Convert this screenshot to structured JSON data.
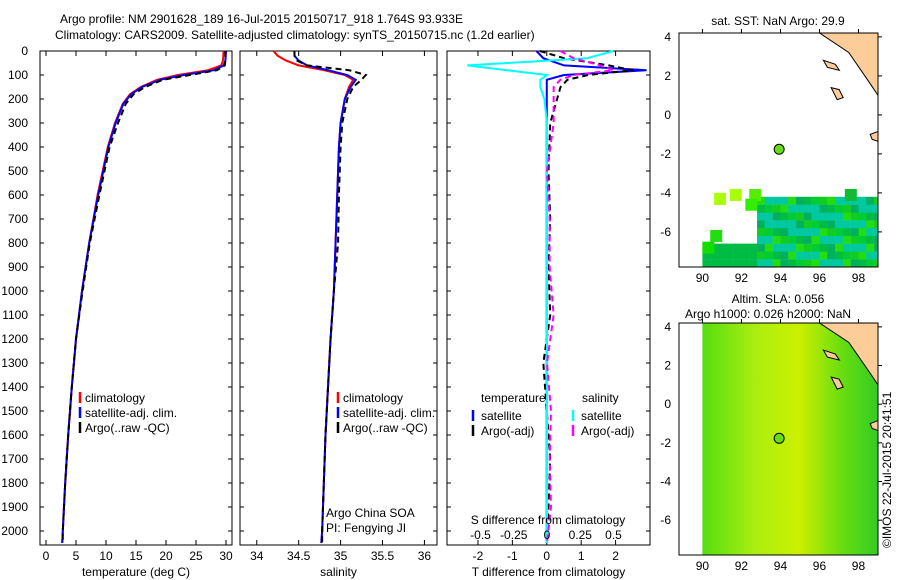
{
  "title_line1": "Argo profile: NM 2901628_189 16-Jul-2015 20150717_918 1.764S 93.933E",
  "title_line2": "Climatology: CARS2009. Satellite-adjusted climatology: synTS_20150715.nc (1.2d earlier)",
  "credit": "©IMOS 22-Jul-2015 20:41:51",
  "colors": {
    "climatology": "#ff0000",
    "satellite": "#0000ff",
    "argo": "#000000",
    "sal_sat": "#00ffff",
    "sal_argo": "#ff00ff",
    "land": "#fccc99"
  },
  "chart_data": [
    {
      "type": "line",
      "xlabel": "temperature (deg C)",
      "ylabel": "depth",
      "xlim": [
        -1,
        31
      ],
      "ylim": [
        2050,
        0
      ],
      "xticks": [
        0,
        5,
        10,
        15,
        20,
        25,
        30
      ],
      "yticks": [
        0,
        100,
        200,
        300,
        400,
        500,
        600,
        700,
        800,
        900,
        1000,
        1100,
        1200,
        1300,
        1400,
        1500,
        1600,
        1700,
        1800,
        1900,
        2000
      ],
      "legend": [
        "climatology",
        "satellite-adj. clim.",
        "Argo(..raw -QC)"
      ],
      "depth": [
        0,
        40,
        60,
        80,
        100,
        120,
        150,
        180,
        220,
        300,
        400,
        600,
        800,
        1000,
        1200,
        1400,
        1600,
        1800,
        2000,
        2050
      ],
      "series": [
        {
          "name": "climatology",
          "values": [
            29.6,
            29.5,
            29.2,
            27,
            22,
            18.5,
            15.8,
            14,
            12.8,
            11.5,
            10.3,
            8.6,
            7.2,
            6,
            5,
            4.3,
            3.7,
            3.2,
            2.8,
            2.7
          ]
        },
        {
          "name": "satellite-adj. clim.",
          "values": [
            30,
            29.9,
            29.6,
            28,
            23,
            19,
            16,
            14.2,
            12.9,
            11.6,
            10.4,
            8.7,
            7.2,
            6,
            5,
            4.3,
            3.7,
            3.2,
            2.8,
            2.7
          ]
        },
        {
          "name": "Argo(..raw -QC)",
          "values": [
            29.9,
            29.9,
            29.8,
            28.5,
            24,
            19.5,
            16.5,
            14.6,
            13.3,
            12,
            10.6,
            8.9,
            7.3,
            6.1,
            5,
            4.3,
            3.7,
            3.2,
            2.8,
            2.8
          ]
        }
      ]
    },
    {
      "type": "line",
      "xlabel": "salinity",
      "xlim": [
        33.8,
        36.15
      ],
      "ylim": [
        2050,
        0
      ],
      "xticks": [
        34,
        34.5,
        35,
        35.5,
        36
      ],
      "legend": [
        "climatology",
        "satellite-adj. clim.",
        "Argo(..raw -QC)"
      ],
      "annotation": [
        "Argo China SOA",
        "PI: Fengying JI"
      ],
      "depth": [
        0,
        20,
        40,
        60,
        80,
        100,
        120,
        150,
        200,
        300,
        400,
        600,
        800,
        1000,
        1200,
        1400,
        1600,
        1800,
        2000,
        2050
      ],
      "series": [
        {
          "name": "climatology",
          "values": [
            34.2,
            34.25,
            34.35,
            34.5,
            34.8,
            35.05,
            35.15,
            35.1,
            35.05,
            35.0,
            34.98,
            34.96,
            34.94,
            34.92,
            34.88,
            34.85,
            34.82,
            34.8,
            34.78,
            34.77
          ]
        },
        {
          "name": "satellite-adj. clim.",
          "values": [
            34.45,
            34.45,
            34.5,
            34.6,
            34.85,
            35.08,
            35.18,
            35.12,
            35.05,
            35.0,
            34.98,
            34.96,
            34.94,
            34.92,
            34.88,
            34.85,
            34.82,
            34.8,
            34.78,
            34.77
          ]
        },
        {
          "name": "Argo(..raw -QC)",
          "values": [
            34.45,
            34.45,
            34.48,
            34.6,
            35.1,
            35.3,
            35.25,
            35.15,
            35.08,
            35.02,
            35.0,
            34.98,
            34.97,
            34.92,
            34.88,
            34.85,
            34.82,
            34.8,
            34.78,
            34.78
          ]
        }
      ]
    },
    {
      "type": "line",
      "xlabel": "T difference from climatology",
      "xlabel2": "S difference from climatology",
      "xlim": [
        -2.9,
        3.0
      ],
      "ylim": [
        2050,
        0
      ],
      "xticks": [
        -2,
        -1,
        0,
        1,
        2
      ],
      "xticks2": [
        "-0.5",
        "-0.25",
        "0",
        "0.25",
        "0.5"
      ],
      "legend_temperature": {
        "title": "temperature",
        "items": [
          "satellite",
          "Argo(-adj)"
        ]
      },
      "legend_salinity": {
        "title": "salinity",
        "items": [
          "satellite",
          "Argo(-adj)"
        ]
      },
      "depth": [
        0,
        30,
        60,
        80,
        100,
        120,
        150,
        200,
        300,
        500,
        700,
        900,
        1100,
        1300,
        1500,
        1700,
        1900,
        2050
      ],
      "series": [
        {
          "name": "T satellite",
          "values": [
            -0.3,
            -0.1,
            0.5,
            2.9,
            0.5,
            0,
            0,
            0,
            0,
            0,
            0,
            0,
            0,
            0,
            0,
            0,
            0,
            0
          ]
        },
        {
          "name": "T Argo(-adj)",
          "values": [
            -0.2,
            0.5,
            1.8,
            2.5,
            1.2,
            0.6,
            0.4,
            0.3,
            0.1,
            0.05,
            0.1,
            0.05,
            0.1,
            -0.1,
            0,
            0.1,
            0.05,
            0
          ]
        },
        {
          "name": "S satellite",
          "values": [
            0.5,
            0.3,
            -0.6,
            -0.3,
            0.0,
            -0.05,
            -0.05,
            -0.02,
            0,
            0,
            0,
            0,
            0,
            0,
            0,
            0,
            0,
            0
          ]
        },
        {
          "name": "S Argo(-adj)",
          "values": [
            0.1,
            0.2,
            0.4,
            0.5,
            0.2,
            0.1,
            0.05,
            0.05,
            0.05,
            0.0,
            0.02,
            0.02,
            0.05,
            0.0,
            0.03,
            0.02,
            0.03,
            0.0
          ]
        }
      ]
    },
    {
      "type": "heatmap",
      "title": "sat. SST: NaN Argo: 29.9",
      "xticks": [
        90,
        92,
        94,
        96,
        98
      ],
      "yticks": [
        4,
        2,
        0,
        -2,
        -4,
        -6
      ],
      "xlim": [
        88.8,
        99
      ],
      "ylim": [
        -7.8,
        4.2
      ],
      "argo_position": [
        93.933,
        -1.764
      ]
    },
    {
      "type": "heatmap",
      "title": "Altim. SLA: 0.056",
      "subtitle": "Argo h1000: 0.026 h2000: NaN",
      "xticks": [
        90,
        92,
        94,
        96,
        98
      ],
      "yticks": [
        4,
        2,
        0,
        -2,
        -4,
        -6
      ],
      "xlim": [
        88.8,
        99
      ],
      "ylim": [
        -7.8,
        4.2
      ],
      "argo_position": [
        93.933,
        -1.764
      ]
    }
  ]
}
